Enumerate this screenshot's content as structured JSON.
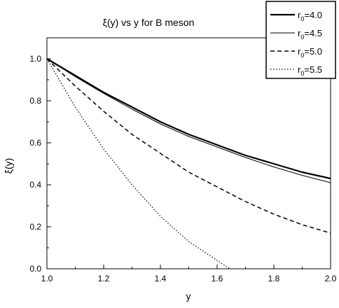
{
  "chart_data": {
    "type": "line",
    "title": "ξ(y) vs y for B meson",
    "xlabel": "y",
    "ylabel": "ξ(y)",
    "xlim": [
      1.0,
      2.0
    ],
    "ylim": [
      0.0,
      1.1
    ],
    "xticks": [
      "1.0",
      "1.2",
      "1.4",
      "1.6",
      "1.8",
      "2.0"
    ],
    "yticks": [
      "0.0",
      "0.2",
      "0.4",
      "0.6",
      "0.8",
      "1.0"
    ],
    "grid": false,
    "legend_position": "top-right",
    "x": [
      1.0,
      1.1,
      1.2,
      1.3,
      1.4,
      1.5,
      1.6,
      1.7,
      1.8,
      1.9,
      2.0
    ],
    "series": [
      {
        "name": "r0=4.0",
        "name_base": "r",
        "name_sub": "0",
        "name_rest": "=4.0",
        "style": "solid-thick",
        "values": [
          1.0,
          0.92,
          0.84,
          0.77,
          0.7,
          0.64,
          0.59,
          0.54,
          0.5,
          0.46,
          0.43
        ]
      },
      {
        "name": "r0=4.5",
        "name_base": "r",
        "name_sub": "0",
        "name_rest": "=4.5",
        "style": "solid-thin",
        "values": [
          1.0,
          0.915,
          0.835,
          0.76,
          0.69,
          0.63,
          0.58,
          0.53,
          0.485,
          0.445,
          0.41
        ]
      },
      {
        "name": "r0=5.0",
        "name_base": "r",
        "name_sub": "0",
        "name_rest": "=5.0",
        "style": "dashed",
        "values": [
          1.0,
          0.87,
          0.75,
          0.64,
          0.55,
          0.46,
          0.39,
          0.32,
          0.26,
          0.21,
          0.17
        ]
      },
      {
        "name": "r0=5.5",
        "name_base": "r",
        "name_sub": "0",
        "name_rest": "=5.5",
        "style": "dotted",
        "values": [
          1.0,
          0.77,
          0.57,
          0.4,
          0.25,
          0.13,
          0.04,
          null,
          null,
          null,
          null
        ]
      }
    ]
  }
}
